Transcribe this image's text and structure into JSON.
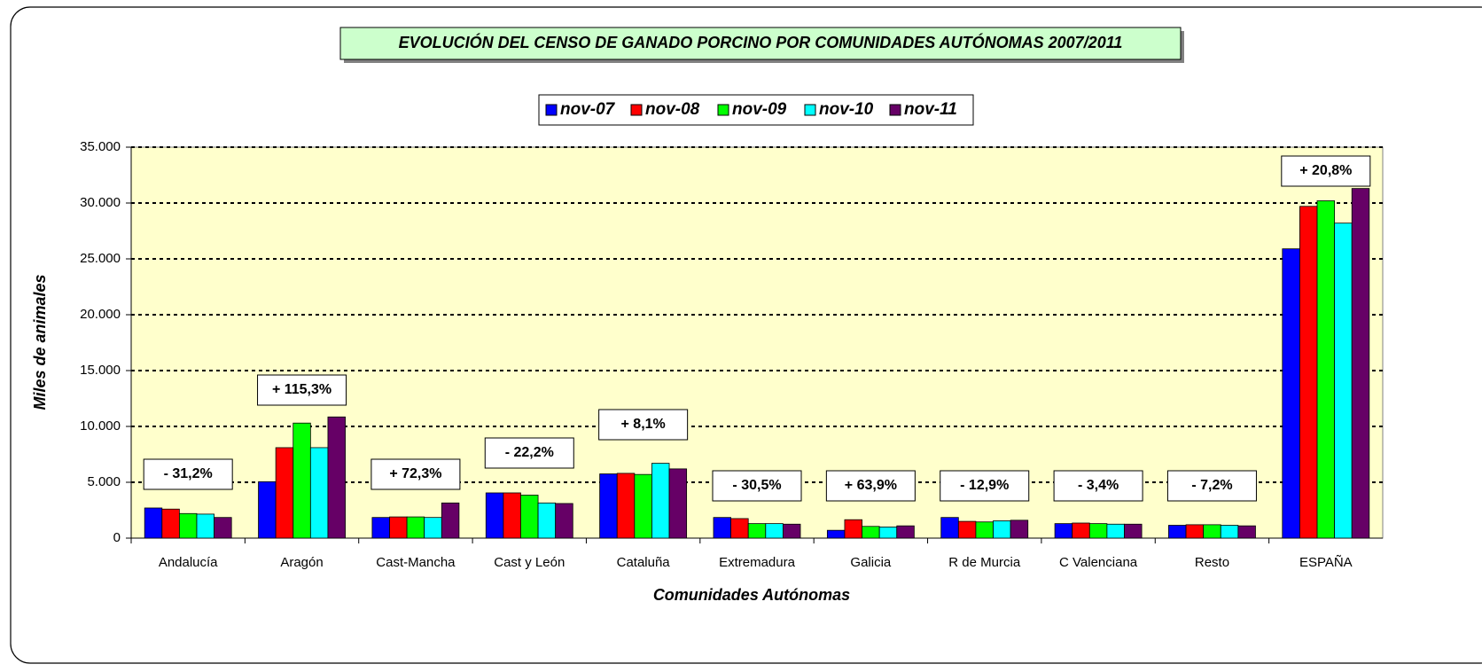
{
  "chart_data": {
    "type": "bar",
    "title": "EVOLUCIÓN DEL CENSO DE GANADO PORCINO POR COMUNIDADES AUTÓNOMAS 2007/2011",
    "x_label": "Comunidades Autónomas",
    "y_label": "Miles de animales",
    "categories": [
      "Andalucía",
      "Aragón",
      "Cast-Mancha",
      "Cast y León",
      "Cataluña",
      "Extremadura",
      "Galicia",
      "R de Murcia",
      "C Valenciana",
      "Resto",
      "ESPAÑA"
    ],
    "annotations": [
      "- 31,2%",
      "+ 115,3%",
      "+ 72,3%",
      "- 22,2%",
      "+ 8,1%",
      "- 30,5%",
      "+ 63,9%",
      "- 12,9%",
      "- 3,4%",
      "- 7,2%",
      "+ 20,8%"
    ],
    "series": [
      {
        "name": "nov-07",
        "color": "#0000ff",
        "values": [
          2700,
          5050,
          1850,
          4050,
          5750,
          1850,
          700,
          1850,
          1300,
          1150,
          25900
        ]
      },
      {
        "name": "nov-08",
        "color": "#ff0000",
        "values": [
          2600,
          8100,
          1900,
          4050,
          5800,
          1750,
          1650,
          1500,
          1350,
          1200,
          29700
        ]
      },
      {
        "name": "nov-09",
        "color": "#00ff00",
        "values": [
          2200,
          10300,
          1900,
          3850,
          5700,
          1300,
          1050,
          1450,
          1300,
          1200,
          30200
        ]
      },
      {
        "name": "nov-10",
        "color": "#00ffff",
        "values": [
          2150,
          8100,
          1850,
          3150,
          6700,
          1300,
          1000,
          1550,
          1250,
          1150,
          28200
        ]
      },
      {
        "name": "nov-11",
        "color": "#660066",
        "values": [
          1850,
          10850,
          3150,
          3100,
          6200,
          1250,
          1100,
          1600,
          1250,
          1100,
          31300
        ]
      }
    ],
    "ylim": [
      0,
      35000
    ],
    "yticks": [
      0,
      {
        "value": 5000,
        "label": "5.000"
      },
      {
        "value": 10000,
        "label": "10.000"
      },
      {
        "value": 15000,
        "label": "15.000"
      },
      {
        "value": 20000,
        "label": "20.000"
      },
      {
        "value": 25000,
        "label": "25.000"
      },
      {
        "value": 30000,
        "label": "30.000"
      },
      {
        "value": 35000,
        "label": "35.000"
      }
    ],
    "grid": true,
    "plot_background": "#ffffcc"
  }
}
